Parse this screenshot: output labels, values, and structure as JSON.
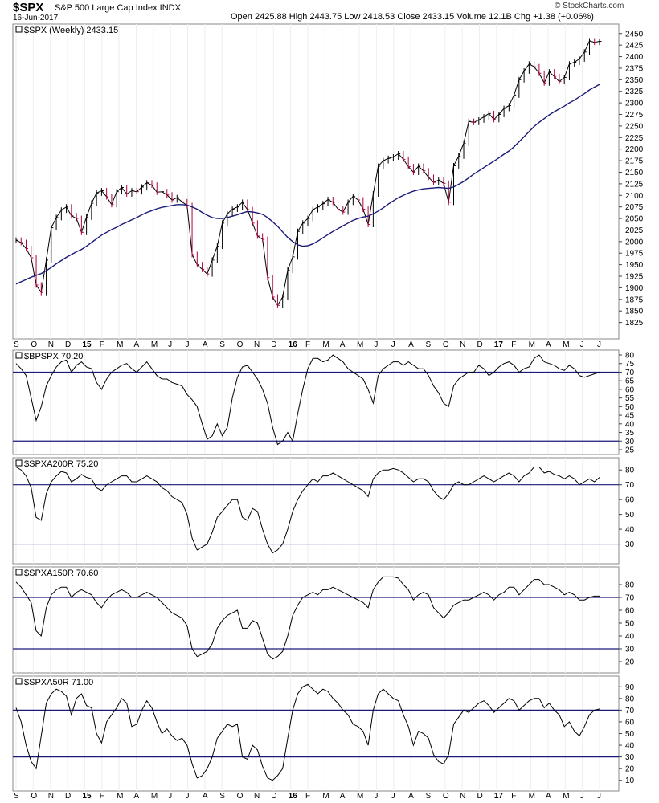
{
  "header": {
    "symbol": "$SPX",
    "name": "S&P 500 Large Cap Index INDX",
    "date": "16-Jun-2017",
    "ohlc": "Open 2425.88  High 2443.75  Low 2418.53  Close 2433.15  Volume 12.1B  Chg +1.38 (+0.06%)",
    "brand": "© StockCharts.com"
  },
  "colors": {
    "price_up": "#000000",
    "price_down": "#b0003a",
    "ma_line": "#1a1a7a",
    "ref_line": "#1a1a7a",
    "indicator_line": "#000000",
    "grid": "#cccccc"
  },
  "chart_data": [
    {
      "type": "line",
      "title": "$SPX (Weekly) 2433.15",
      "ylim": [
        1800,
        2460
      ],
      "yticks": [
        1825,
        1850,
        1875,
        1900,
        1925,
        1950,
        1975,
        2000,
        2025,
        2050,
        2075,
        2100,
        2125,
        2150,
        2175,
        2200,
        2225,
        2250,
        2275,
        2300,
        2325,
        2350,
        2375,
        2400,
        2425,
        2450
      ],
      "x_tick_labels": [
        "S",
        "O",
        "N",
        "D",
        "15",
        "F",
        "M",
        "A",
        "M",
        "J",
        "J",
        "A",
        "S",
        "O",
        "N",
        "D",
        "16",
        "F",
        "M",
        "A",
        "M",
        "J",
        "J",
        "A",
        "S",
        "O",
        "N",
        "D",
        "17",
        "F",
        "M",
        "A",
        "M",
        "J",
        "J"
      ],
      "series": [
        {
          "values": [
            2003,
            1998,
            1985,
            1965,
            1906,
            1890,
            1960,
            2030,
            2052,
            2068,
            2075,
            2056,
            2050,
            2020,
            2053,
            2083,
            2105,
            2110,
            2097,
            2080,
            2108,
            2117,
            2103,
            2110,
            2108,
            2118,
            2127,
            2122,
            2107,
            2108,
            2101,
            2090,
            2095,
            2086,
            2078,
            1972,
            1950,
            1940,
            1930,
            1960,
            1990,
            2040,
            2060,
            2070,
            2075,
            2085,
            2069,
            2040,
            2012,
            2005,
            1922,
            1880,
            1862,
            1880,
            1938,
            1967,
            2022,
            2040,
            2050,
            2069,
            2075,
            2082,
            2091,
            2085,
            2070,
            2064,
            2085,
            2098,
            2090,
            2070,
            2037,
            2103,
            2163,
            2175,
            2180,
            2183,
            2190,
            2178,
            2162,
            2150,
            2163,
            2153,
            2139,
            2128,
            2133,
            2126,
            2085,
            2164,
            2185,
            2213,
            2260,
            2258,
            2263,
            2270,
            2277,
            2264,
            2275,
            2288,
            2294,
            2317,
            2350,
            2369,
            2384,
            2378,
            2364,
            2343,
            2367,
            2357,
            2346,
            2355,
            2384,
            2388,
            2395,
            2410,
            2434,
            2431,
            2433
          ]
        },
        {
          "name": "moving average",
          "values": [
            1908,
            1913,
            1918,
            1923,
            1927,
            1931,
            1937,
            1944,
            1952,
            1959,
            1966,
            1972,
            1978,
            1983,
            1990,
            1998,
            2006,
            2014,
            2020,
            2026,
            2031,
            2037,
            2042,
            2047,
            2052,
            2058,
            2063,
            2067,
            2071,
            2074,
            2076,
            2078,
            2080,
            2080,
            2079,
            2075,
            2070,
            2063,
            2057,
            2052,
            2050,
            2050,
            2052,
            2055,
            2058,
            2062,
            2065,
            2064,
            2062,
            2059,
            2052,
            2043,
            2033,
            2021,
            2009,
            2000,
            1993,
            1990,
            1991,
            1995,
            2001,
            2008,
            2015,
            2022,
            2028,
            2034,
            2040,
            2046,
            2050,
            2053,
            2055,
            2060,
            2066,
            2073,
            2081,
            2088,
            2095,
            2100,
            2105,
            2109,
            2112,
            2114,
            2115,
            2116,
            2117,
            2116,
            2115,
            2118,
            2124,
            2130,
            2138,
            2146,
            2153,
            2160,
            2167,
            2174,
            2181,
            2189,
            2196,
            2205,
            2216,
            2227,
            2238,
            2249,
            2258,
            2266,
            2274,
            2281,
            2287,
            2293,
            2300,
            2306,
            2313,
            2320,
            2328,
            2334,
            2340
          ]
        }
      ]
    },
    {
      "type": "line",
      "title": "$BPSPX 70.20",
      "ylim": [
        25,
        80
      ],
      "yticks": [
        25,
        30,
        35,
        40,
        45,
        50,
        55,
        60,
        65,
        70,
        75,
        80
      ],
      "reference_lines": [
        70,
        30
      ],
      "series": [
        {
          "values": [
            75,
            72,
            68,
            55,
            42,
            50,
            62,
            68,
            73,
            76,
            77,
            70,
            74,
            76,
            73,
            72,
            64,
            60,
            66,
            70,
            72,
            74,
            75,
            72,
            70,
            73,
            76,
            72,
            68,
            66,
            66,
            64,
            63,
            62,
            57,
            54,
            50,
            40,
            31,
            33,
            40,
            33,
            38,
            55,
            67,
            73,
            74,
            70,
            66,
            60,
            52,
            38,
            28,
            30,
            35,
            30,
            46,
            60,
            72,
            78,
            78,
            76,
            77,
            80,
            78,
            76,
            72,
            70,
            68,
            66,
            60,
            52,
            68,
            72,
            74,
            76,
            76,
            74,
            76,
            74,
            72,
            72,
            68,
            62,
            58,
            52,
            50,
            62,
            66,
            68,
            70,
            70,
            74,
            72,
            68,
            70,
            73,
            75,
            76,
            74,
            70,
            72,
            73,
            78,
            80,
            76,
            75,
            74,
            72,
            71,
            74,
            72,
            68,
            67,
            68,
            69,
            70
          ]
        }
      ]
    },
    {
      "type": "line",
      "title": "$SPXA200R 75.20",
      "ylim": [
        20,
        85
      ],
      "yticks": [
        30,
        40,
        50,
        60,
        70,
        80
      ],
      "reference_lines": [
        70,
        30
      ],
      "series": [
        {
          "values": [
            82,
            80,
            76,
            68,
            48,
            46,
            64,
            72,
            76,
            79,
            78,
            72,
            74,
            77,
            75,
            74,
            68,
            66,
            70,
            72,
            74,
            76,
            76,
            72,
            72,
            74,
            76,
            74,
            72,
            68,
            66,
            62,
            60,
            58,
            50,
            34,
            26,
            28,
            30,
            38,
            48,
            52,
            56,
            60,
            60,
            48,
            46,
            54,
            52,
            40,
            30,
            24,
            26,
            30,
            40,
            52,
            60,
            66,
            70,
            74,
            72,
            76,
            76,
            78,
            76,
            74,
            72,
            70,
            68,
            66,
            62,
            74,
            78,
            80,
            80,
            81,
            80,
            78,
            75,
            72,
            74,
            74,
            72,
            66,
            62,
            60,
            64,
            70,
            72,
            70,
            70,
            72,
            74,
            76,
            74,
            72,
            74,
            76,
            78,
            76,
            72,
            76,
            78,
            82,
            82,
            78,
            79,
            77,
            76,
            74,
            76,
            74,
            70,
            72,
            74,
            72,
            75
          ]
        }
      ]
    },
    {
      "type": "line",
      "title": "$SPXA150R 70.60",
      "ylim": [
        15,
        90
      ],
      "yticks": [
        20,
        30,
        40,
        50,
        60,
        70,
        80
      ],
      "reference_lines": [
        70,
        30
      ],
      "series": [
        {
          "values": [
            82,
            78,
            72,
            66,
            44,
            40,
            62,
            72,
            76,
            78,
            78,
            70,
            74,
            76,
            74,
            72,
            66,
            62,
            68,
            72,
            74,
            76,
            74,
            70,
            70,
            72,
            74,
            72,
            70,
            66,
            62,
            58,
            56,
            54,
            48,
            30,
            24,
            26,
            28,
            34,
            46,
            52,
            56,
            58,
            60,
            46,
            46,
            52,
            50,
            38,
            26,
            22,
            24,
            28,
            40,
            56,
            64,
            70,
            72,
            74,
            72,
            76,
            76,
            78,
            76,
            74,
            72,
            70,
            68,
            66,
            62,
            76,
            82,
            86,
            86,
            86,
            85,
            80,
            76,
            68,
            72,
            74,
            72,
            62,
            58,
            54,
            58,
            64,
            66,
            68,
            68,
            70,
            72,
            74,
            72,
            68,
            72,
            74,
            78,
            78,
            72,
            76,
            80,
            84,
            84,
            80,
            80,
            78,
            76,
            72,
            74,
            72,
            68,
            68,
            70,
            71,
            71
          ]
        }
      ]
    },
    {
      "type": "line",
      "title": "$SPXA50R 71.00",
      "ylim": [
        5,
        95
      ],
      "yticks": [
        10,
        20,
        30,
        40,
        50,
        60,
        70,
        80,
        90
      ],
      "reference_lines": [
        70,
        30
      ],
      "series": [
        {
          "values": [
            72,
            60,
            40,
            26,
            20,
            48,
            76,
            84,
            88,
            86,
            82,
            66,
            80,
            84,
            74,
            72,
            50,
            42,
            60,
            66,
            72,
            80,
            76,
            56,
            58,
            70,
            78,
            72,
            60,
            50,
            54,
            48,
            44,
            46,
            40,
            24,
            12,
            14,
            20,
            30,
            46,
            52,
            58,
            56,
            58,
            30,
            28,
            40,
            36,
            22,
            12,
            10,
            14,
            20,
            46,
            70,
            84,
            90,
            92,
            88,
            84,
            88,
            86,
            80,
            76,
            70,
            66,
            58,
            56,
            52,
            40,
            70,
            84,
            88,
            84,
            80,
            78,
            66,
            56,
            40,
            52,
            50,
            46,
            32,
            26,
            24,
            32,
            58,
            64,
            70,
            68,
            72,
            76,
            78,
            74,
            68,
            72,
            76,
            80,
            78,
            70,
            74,
            78,
            80,
            80,
            72,
            76,
            70,
            66,
            56,
            60,
            52,
            48,
            56,
            66,
            70,
            71
          ]
        }
      ]
    }
  ]
}
